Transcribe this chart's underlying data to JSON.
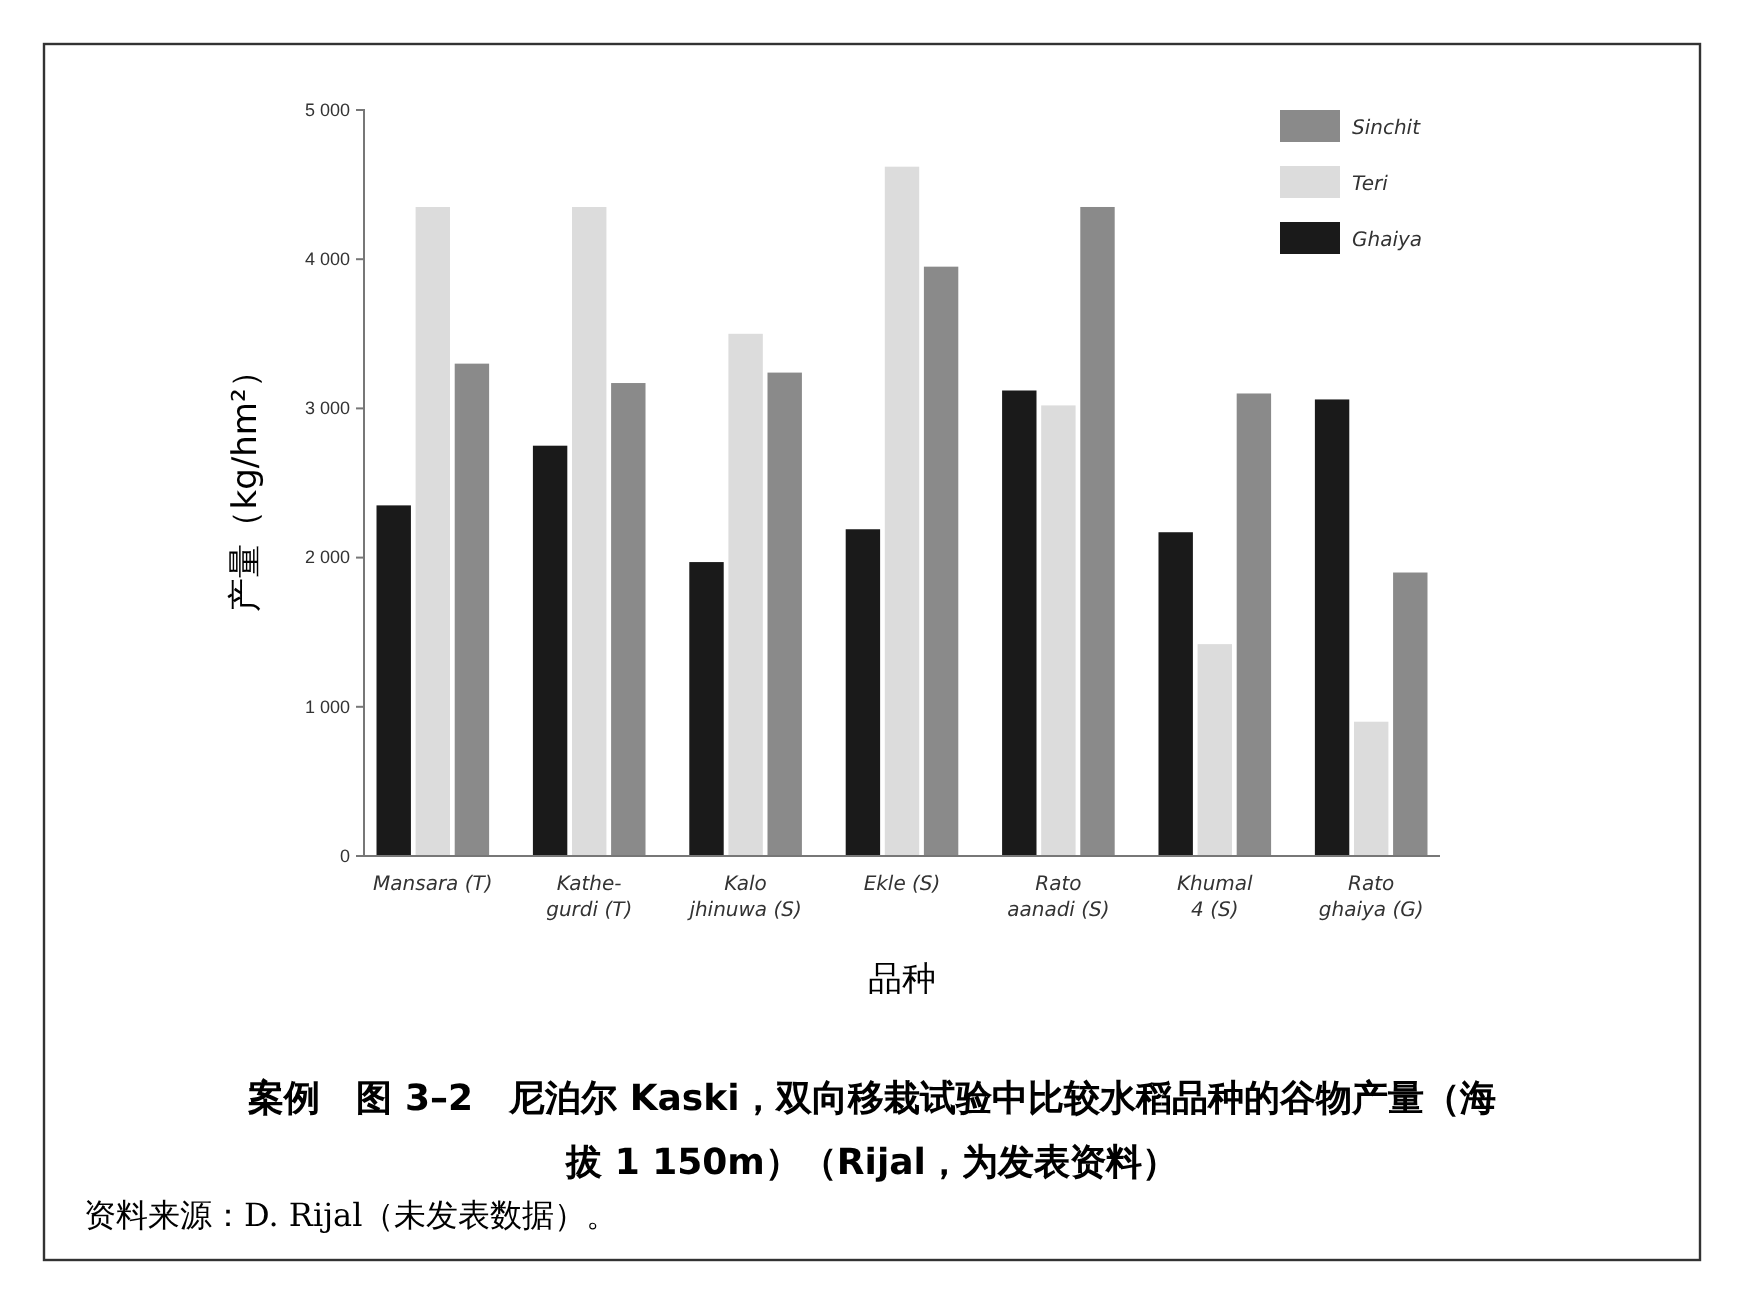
{
  "chart_data": {
    "type": "bar",
    "title": "案例　图 3–2　尼泊尔 Kaski，双向移栽试验中比较水稻品种的谷物产量（海拔 1 150m）（Rijal，为发表资料）",
    "xlabel": "品种",
    "ylabel": "产量（kg/hm²）",
    "categories": [
      "Mansara (T)",
      "Kathe-\ngurdi (T)",
      "Kalo\njhinuwa (S)",
      "Ekle (S)",
      "Rato\naanadi (S)",
      "Khumal\n4 (S)",
      "Rato\nghaiya (G)"
    ],
    "series": [
      {
        "name": "Ghaiya",
        "color": "#1a1a1a",
        "values": [
          2350,
          2750,
          1970,
          2190,
          3120,
          2170,
          3060
        ]
      },
      {
        "name": "Teri",
        "color": "#dcdcdc",
        "values": [
          4350,
          4350,
          3500,
          4620,
          3020,
          1420,
          900
        ]
      },
      {
        "name": "Sinchit",
        "color": "#8a8a8a",
        "values": [
          3300,
          3170,
          3240,
          3950,
          4350,
          3100,
          1900
        ]
      }
    ],
    "ylim": [
      0,
      5000
    ],
    "yticks": [
      0,
      {
        "value": 1000,
        "label": "1 000"
      },
      {
        "value": 2000,
        "label": "2 000"
      },
      {
        "value": 3000,
        "label": "3 000"
      },
      {
        "value": 4000,
        "label": "4 000"
      },
      {
        "value": 5000,
        "label": "5 000"
      }
    ],
    "grid": false,
    "legend": "top right",
    "annotations": [
      "资料来源：D. Rijal（未发表数据）。"
    ]
  }
}
